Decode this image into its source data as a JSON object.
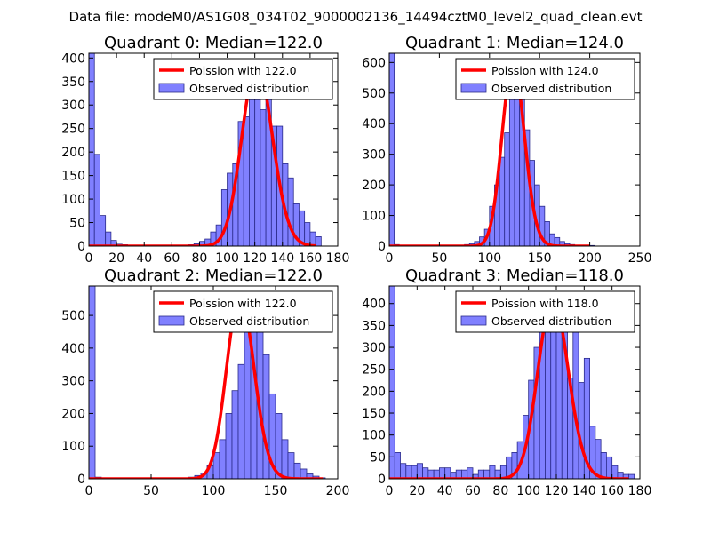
{
  "figure": {
    "suptitle": "Data file: modeM0/AS1G08_034T02_9000002136_14494cztM0_level2_quad_clean.evt"
  },
  "chart_data": [
    {
      "type": "bar",
      "title": "Quadrant 0: Median=122.0",
      "xlabel": "",
      "ylabel": "",
      "xlim": [
        0,
        180
      ],
      "ylim": [
        0,
        410
      ],
      "xticks": [
        0,
        20,
        40,
        60,
        80,
        100,
        120,
        140,
        160,
        180
      ],
      "yticks": [
        0,
        50,
        100,
        150,
        200,
        250,
        300,
        350,
        400
      ],
      "bin_width": 4,
      "bins_start": [
        0,
        4,
        8,
        12,
        16,
        20,
        24,
        28,
        32,
        36,
        40,
        44,
        48,
        52,
        56,
        60,
        64,
        68,
        72,
        76,
        80,
        84,
        88,
        92,
        96,
        100,
        104,
        108,
        112,
        116,
        120,
        124,
        128,
        132,
        136,
        140,
        144,
        148,
        152,
        156,
        160,
        164
      ],
      "counts": [
        410,
        195,
        65,
        30,
        12,
        4,
        3,
        2,
        2,
        2,
        2,
        2,
        2,
        2,
        2,
        2,
        2,
        2,
        3,
        5,
        10,
        15,
        30,
        45,
        120,
        155,
        175,
        265,
        275,
        330,
        355,
        290,
        390,
        255,
        255,
        175,
        145,
        90,
        75,
        50,
        30,
        20
      ],
      "fit": {
        "label": "Poission with 122.0",
        "mu": 122.0,
        "peak": 385,
        "x_range": [
          0,
          164
        ]
      },
      "legend": {
        "position": "top-right",
        "entries": [
          "Poission with 122.0",
          "Observed distribution"
        ]
      }
    },
    {
      "type": "bar",
      "title": "Quadrant 1: Median=124.0",
      "xlabel": "",
      "ylabel": "",
      "xlim": [
        0,
        250
      ],
      "ylim": [
        0,
        630
      ],
      "xticks": [
        0,
        50,
        100,
        150,
        200,
        250
      ],
      "yticks": [
        0,
        100,
        200,
        300,
        400,
        500,
        600
      ],
      "bin_width": 5,
      "bins_start": [
        0,
        5,
        10,
        15,
        20,
        25,
        30,
        35,
        40,
        45,
        50,
        55,
        60,
        65,
        70,
        75,
        80,
        85,
        90,
        95,
        100,
        105,
        110,
        115,
        120,
        125,
        130,
        135,
        140,
        145,
        150,
        155,
        160,
        165,
        170,
        175,
        180,
        185,
        190,
        195,
        200
      ],
      "counts": [
        630,
        5,
        3,
        3,
        2,
        2,
        2,
        2,
        2,
        2,
        3,
        3,
        3,
        3,
        3,
        5,
        8,
        15,
        30,
        55,
        130,
        200,
        290,
        370,
        520,
        590,
        510,
        380,
        280,
        200,
        130,
        80,
        40,
        28,
        15,
        8,
        5,
        3,
        2,
        2,
        2
      ],
      "fit": {
        "label": "Poission with 124.0",
        "mu": 124.0,
        "peak": 600,
        "x_range": [
          0,
          200
        ]
      },
      "legend": {
        "position": "top-right",
        "entries": [
          "Poission with 124.0",
          "Observed distribution"
        ]
      }
    },
    {
      "type": "bar",
      "title": "Quadrant 2: Median=122.0",
      "xlabel": "",
      "ylabel": "",
      "xlim": [
        0,
        200
      ],
      "ylim": [
        0,
        590
      ],
      "xticks": [
        0,
        50,
        100,
        150,
        200
      ],
      "yticks": [
        0,
        100,
        200,
        300,
        400,
        500
      ],
      "bin_width": 5,
      "bins_start": [
        0,
        5,
        10,
        15,
        20,
        25,
        30,
        35,
        40,
        45,
        50,
        55,
        60,
        65,
        70,
        75,
        80,
        85,
        90,
        95,
        100,
        105,
        110,
        115,
        120,
        125,
        130,
        135,
        140,
        145,
        150,
        155,
        160,
        165,
        170,
        175,
        180,
        185
      ],
      "counts": [
        590,
        5,
        3,
        2,
        2,
        2,
        2,
        2,
        2,
        2,
        2,
        2,
        2,
        2,
        2,
        2,
        5,
        10,
        18,
        40,
        80,
        120,
        200,
        270,
        350,
        460,
        560,
        480,
        380,
        260,
        200,
        120,
        80,
        48,
        30,
        15,
        8,
        3
      ],
      "fit": {
        "label": "Poission with 122.0",
        "mu": 122.0,
        "peak": 560,
        "x_range": [
          0,
          188
        ]
      },
      "legend": {
        "position": "top-right",
        "entries": [
          "Poission with 122.0",
          "Observed distribution"
        ]
      }
    },
    {
      "type": "bar",
      "title": "Quadrant 3: Median=118.0",
      "xlabel": "",
      "ylabel": "",
      "xlim": [
        0,
        180
      ],
      "ylim": [
        0,
        440
      ],
      "xticks": [
        0,
        20,
        40,
        60,
        80,
        100,
        120,
        140,
        160,
        180
      ],
      "yticks": [
        0,
        50,
        100,
        150,
        200,
        250,
        300,
        350,
        400
      ],
      "bin_width": 4,
      "bins_start": [
        0,
        4,
        8,
        12,
        16,
        20,
        24,
        28,
        32,
        36,
        40,
        44,
        48,
        52,
        56,
        60,
        64,
        68,
        72,
        76,
        80,
        84,
        88,
        92,
        96,
        100,
        104,
        108,
        112,
        116,
        120,
        124,
        128,
        132,
        136,
        140,
        144,
        148,
        152,
        156,
        160,
        164,
        168,
        172
      ],
      "counts": [
        440,
        60,
        35,
        30,
        30,
        35,
        25,
        20,
        20,
        25,
        25,
        15,
        20,
        20,
        25,
        10,
        20,
        20,
        30,
        20,
        30,
        50,
        60,
        85,
        145,
        225,
        300,
        340,
        400,
        390,
        400,
        370,
        230,
        360,
        220,
        275,
        120,
        90,
        60,
        50,
        30,
        15,
        10,
        10
      ],
      "fit": {
        "label": "Poission with 118.0",
        "mu": 118.0,
        "peak": 410,
        "x_range": [
          0,
          172
        ]
      },
      "legend": {
        "position": "top-right",
        "entries": [
          "Poission with 118.0",
          "Observed distribution"
        ]
      }
    }
  ],
  "colors": {
    "bar_fill": "#8080ff",
    "bar_edge": "#2a2a8a",
    "fit_line": "#ff0000",
    "axes": "#000000",
    "legend_border": "#000000"
  }
}
